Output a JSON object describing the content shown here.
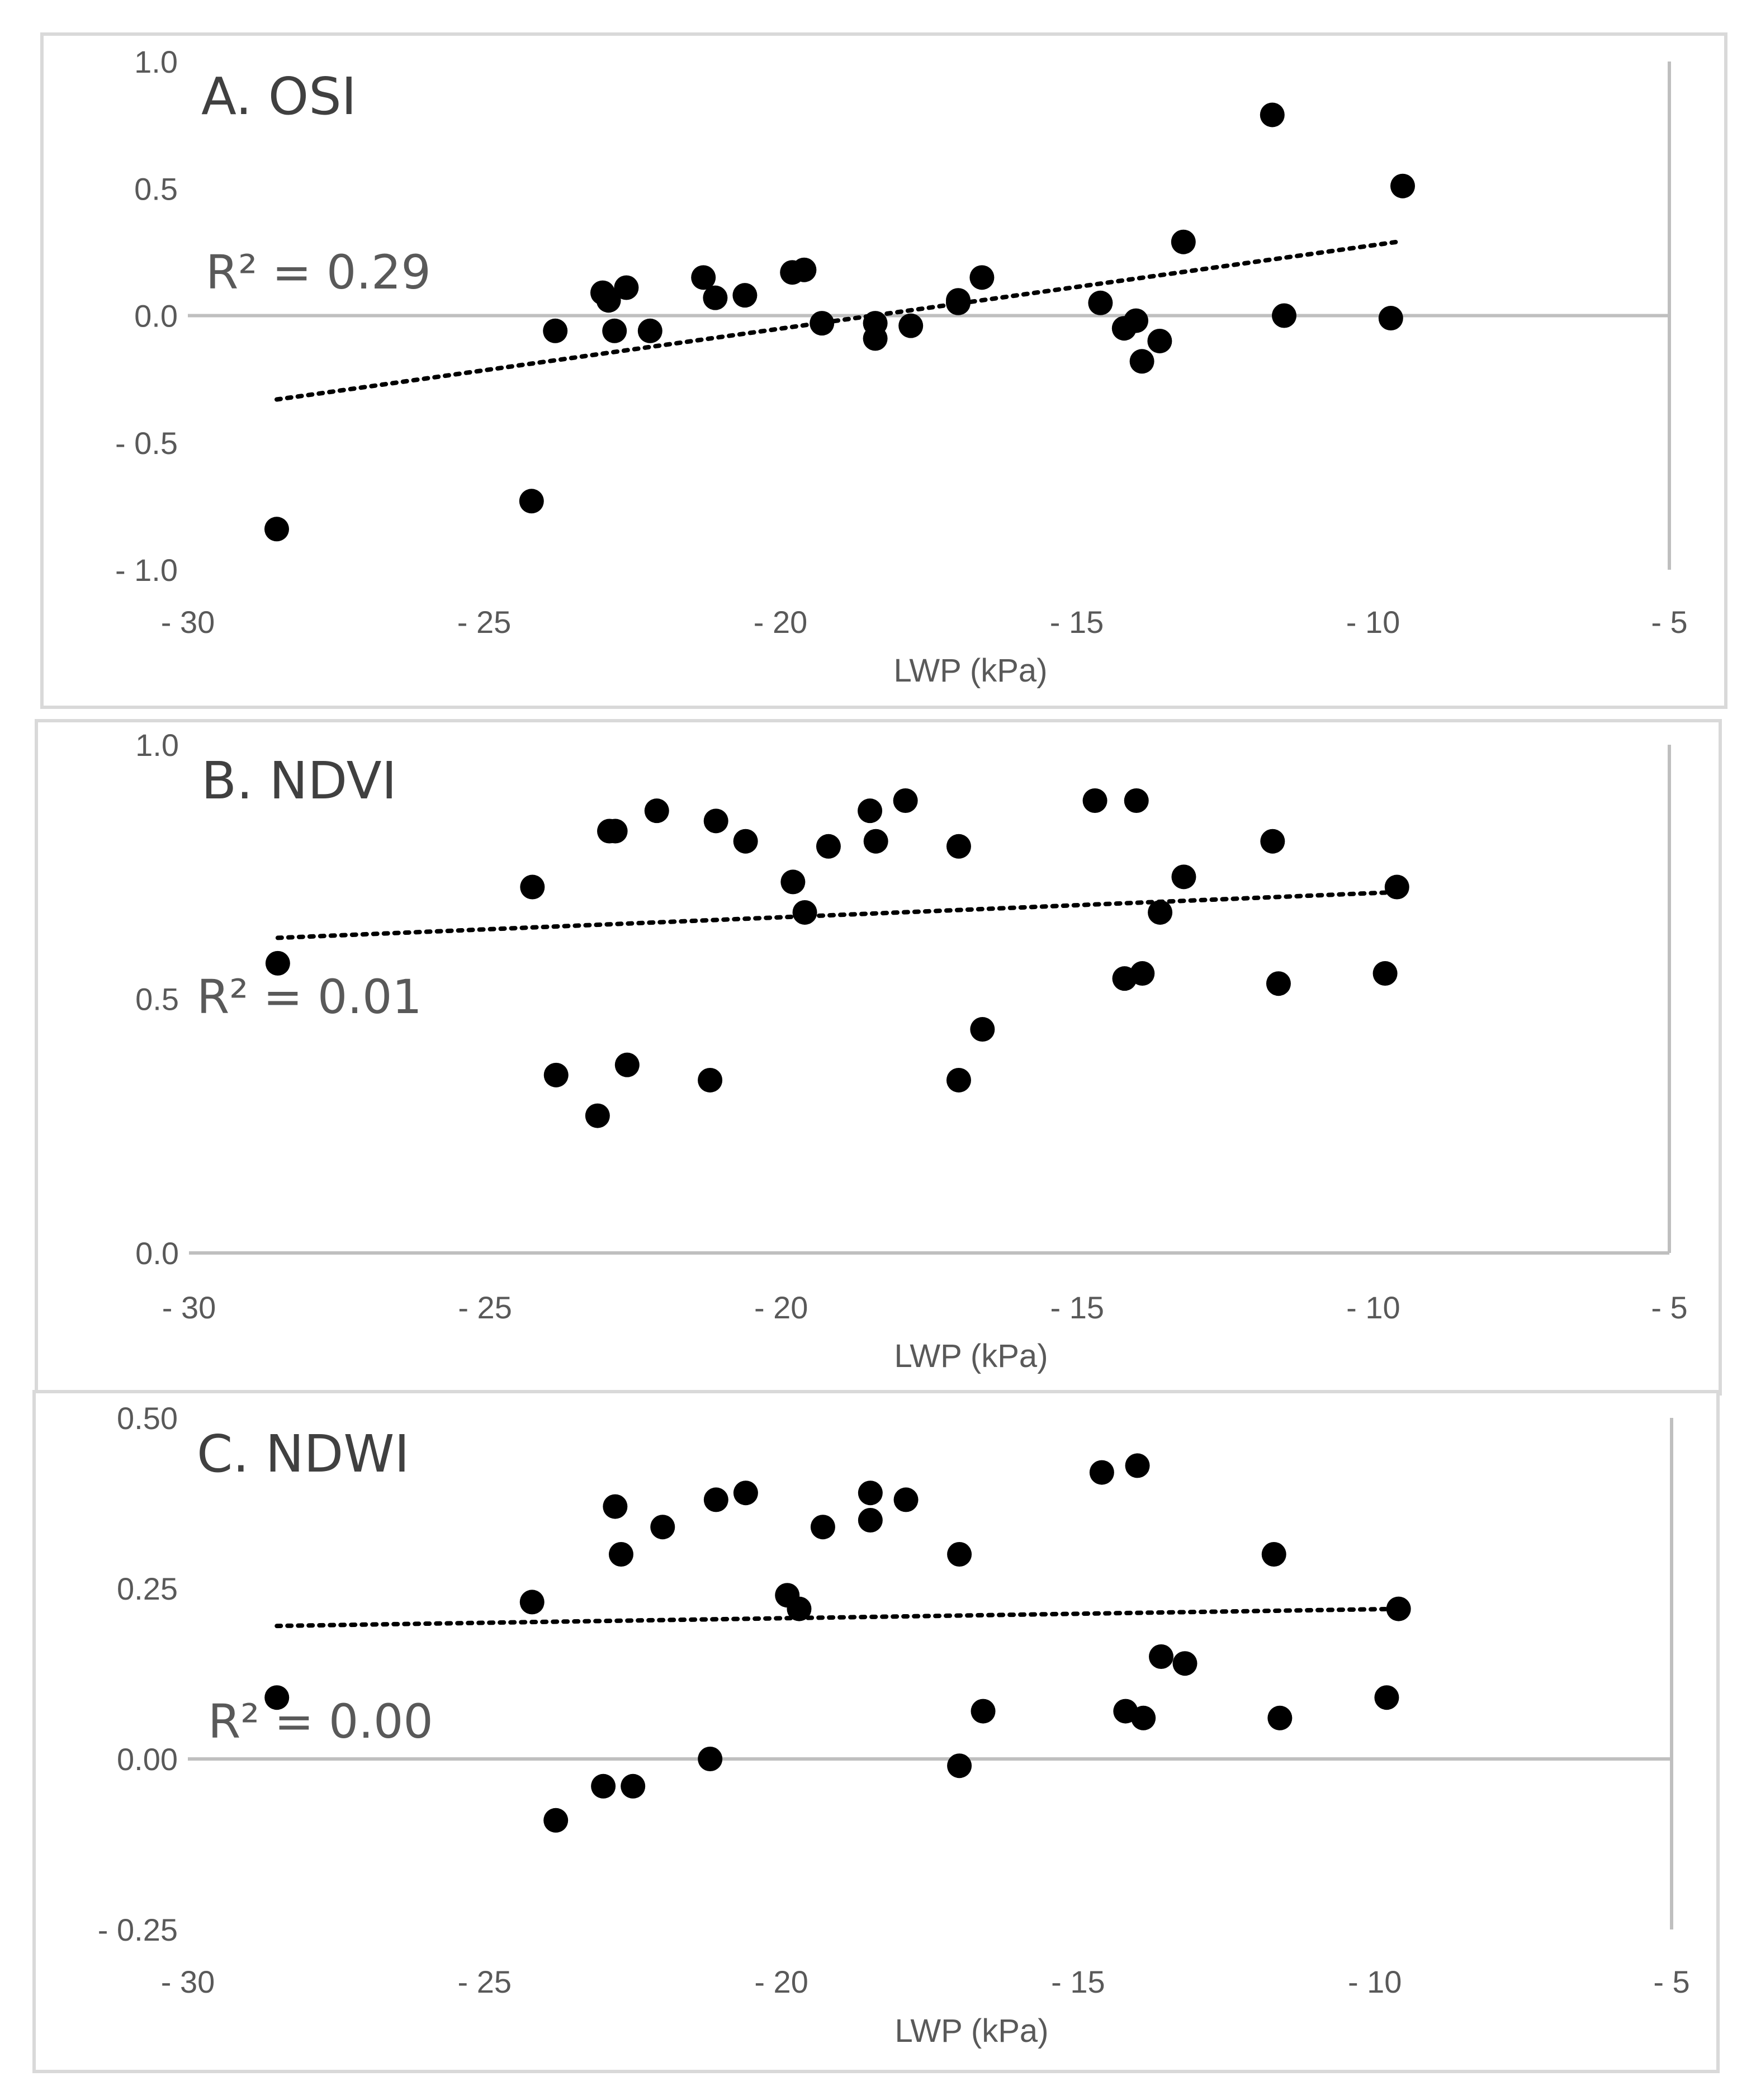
{
  "chart_data": [
    {
      "type": "scatter",
      "title": "A. OSI",
      "annotation": "R² = 0.29",
      "xlabel": "LWP (kPa)",
      "ylabel": "",
      "xlim": [
        -30,
        -5
      ],
      "ylim": [
        -1.0,
        1.0
      ],
      "x_ticks": [
        -30,
        -25,
        -20,
        -15,
        -10,
        -5
      ],
      "x_tick_labels": [
        "- 30",
        "- 25",
        "- 20",
        "- 15",
        "- 10",
        "- 5"
      ],
      "y_ticks": [
        1.0,
        0.5,
        0.0,
        -0.5,
        -1.0
      ],
      "y_tick_labels": [
        "1.0",
        "0.5",
        "0.0",
        "- 0.5",
        "- 1.0"
      ],
      "trendline": {
        "x": [
          -28.5,
          -9.6
        ],
        "y": [
          -0.33,
          0.29
        ]
      },
      "x": [
        -28.5,
        -24.2,
        -23.8,
        -23.0,
        -22.9,
        -22.8,
        -22.6,
        -22.2,
        -21.3,
        -21.1,
        -20.6,
        -19.8,
        -19.6,
        -19.3,
        -18.4,
        -18.4,
        -17.8,
        -17.0,
        -17.0,
        -16.6,
        -14.6,
        -14.2,
        -14.0,
        -13.9,
        -13.6,
        -13.2,
        -11.7,
        -11.5,
        -9.7,
        -9.5
      ],
      "y": [
        -0.84,
        -0.73,
        -0.06,
        0.09,
        0.06,
        -0.06,
        0.11,
        -0.06,
        0.15,
        0.07,
        0.08,
        0.17,
        0.18,
        -0.03,
        -0.03,
        -0.09,
        -0.04,
        0.06,
        0.05,
        0.15,
        0.05,
        -0.05,
        -0.02,
        -0.18,
        -0.1,
        0.29,
        0.79,
        0.0,
        -0.01,
        0.51
      ]
    },
    {
      "type": "scatter",
      "title": "B. NDVI",
      "annotation": "R² = 0.01",
      "xlabel": "LWP (kPa)",
      "ylabel": "",
      "xlim": [
        -30,
        -5
      ],
      "ylim": [
        0.0,
        1.0
      ],
      "x_ticks": [
        -30,
        -25,
        -20,
        -15,
        -10,
        -5
      ],
      "x_tick_labels": [
        "- 30",
        "- 25",
        "- 20",
        "- 15",
        "- 10",
        "- 5"
      ],
      "y_ticks": [
        1.0,
        0.5,
        0.0
      ],
      "y_tick_labels": [
        "1.0",
        "0.5",
        "0.0"
      ],
      "trendline": {
        "x": [
          -28.5,
          -9.6
        ],
        "y": [
          0.62,
          0.71
        ]
      },
      "x": [
        -28.5,
        -24.2,
        -23.8,
        -23.1,
        -22.9,
        -22.8,
        -22.6,
        -22.1,
        -21.2,
        -21.1,
        -20.6,
        -19.8,
        -19.6,
        -19.2,
        -18.5,
        -18.4,
        -17.9,
        -17.0,
        -17.0,
        -16.6,
        -14.7,
        -14.2,
        -14.0,
        -13.9,
        -13.6,
        -13.2,
        -11.7,
        -11.6,
        -9.8,
        -9.6
      ],
      "y": [
        0.57,
        0.72,
        0.35,
        0.27,
        0.83,
        0.83,
        0.37,
        0.87,
        0.34,
        0.85,
        0.81,
        0.73,
        0.67,
        0.8,
        0.87,
        0.81,
        0.89,
        0.8,
        0.34,
        0.44,
        0.89,
        0.54,
        0.89,
        0.55,
        0.67,
        0.74,
        0.81,
        0.53,
        0.55,
        0.72
      ]
    },
    {
      "type": "scatter",
      "title": "C. NDWI",
      "annotation": "R² = 0.00",
      "xlabel": "LWP (kPa)",
      "ylabel": "",
      "xlim": [
        -30,
        -5
      ],
      "ylim": [
        -0.25,
        0.5
      ],
      "x_ticks": [
        -30,
        -25,
        -20,
        -15,
        -10,
        -5
      ],
      "x_tick_labels": [
        "- 30",
        "- 25",
        "- 20",
        "- 15",
        "- 10",
        "- 5"
      ],
      "y_ticks": [
        0.5,
        0.25,
        0.0,
        -0.25
      ],
      "y_tick_labels": [
        "0.50",
        "0.25",
        "0.00",
        "- 0.25"
      ],
      "trendline": {
        "x": [
          -28.5,
          -9.6
        ],
        "y": [
          0.195,
          0.22
        ]
      },
      "x": [
        -28.5,
        -24.2,
        -23.8,
        -23.0,
        -22.8,
        -22.7,
        -22.5,
        -22.0,
        -21.2,
        -21.1,
        -20.6,
        -19.9,
        -19.7,
        -19.3,
        -18.5,
        -18.5,
        -17.9,
        -17.0,
        -17.0,
        -16.6,
        -14.6,
        -14.2,
        -14.0,
        -13.9,
        -13.6,
        -13.2,
        -11.7,
        -11.6,
        -9.8,
        -9.6
      ],
      "y": [
        0.09,
        0.23,
        -0.09,
        -0.04,
        0.37,
        0.3,
        -0.04,
        0.34,
        0.0,
        0.38,
        0.39,
        0.24,
        0.22,
        0.34,
        0.39,
        0.35,
        0.38,
        0.3,
        -0.01,
        0.07,
        0.42,
        0.07,
        0.43,
        0.06,
        0.15,
        0.14,
        0.3,
        0.06,
        0.09,
        0.22
      ]
    }
  ]
}
